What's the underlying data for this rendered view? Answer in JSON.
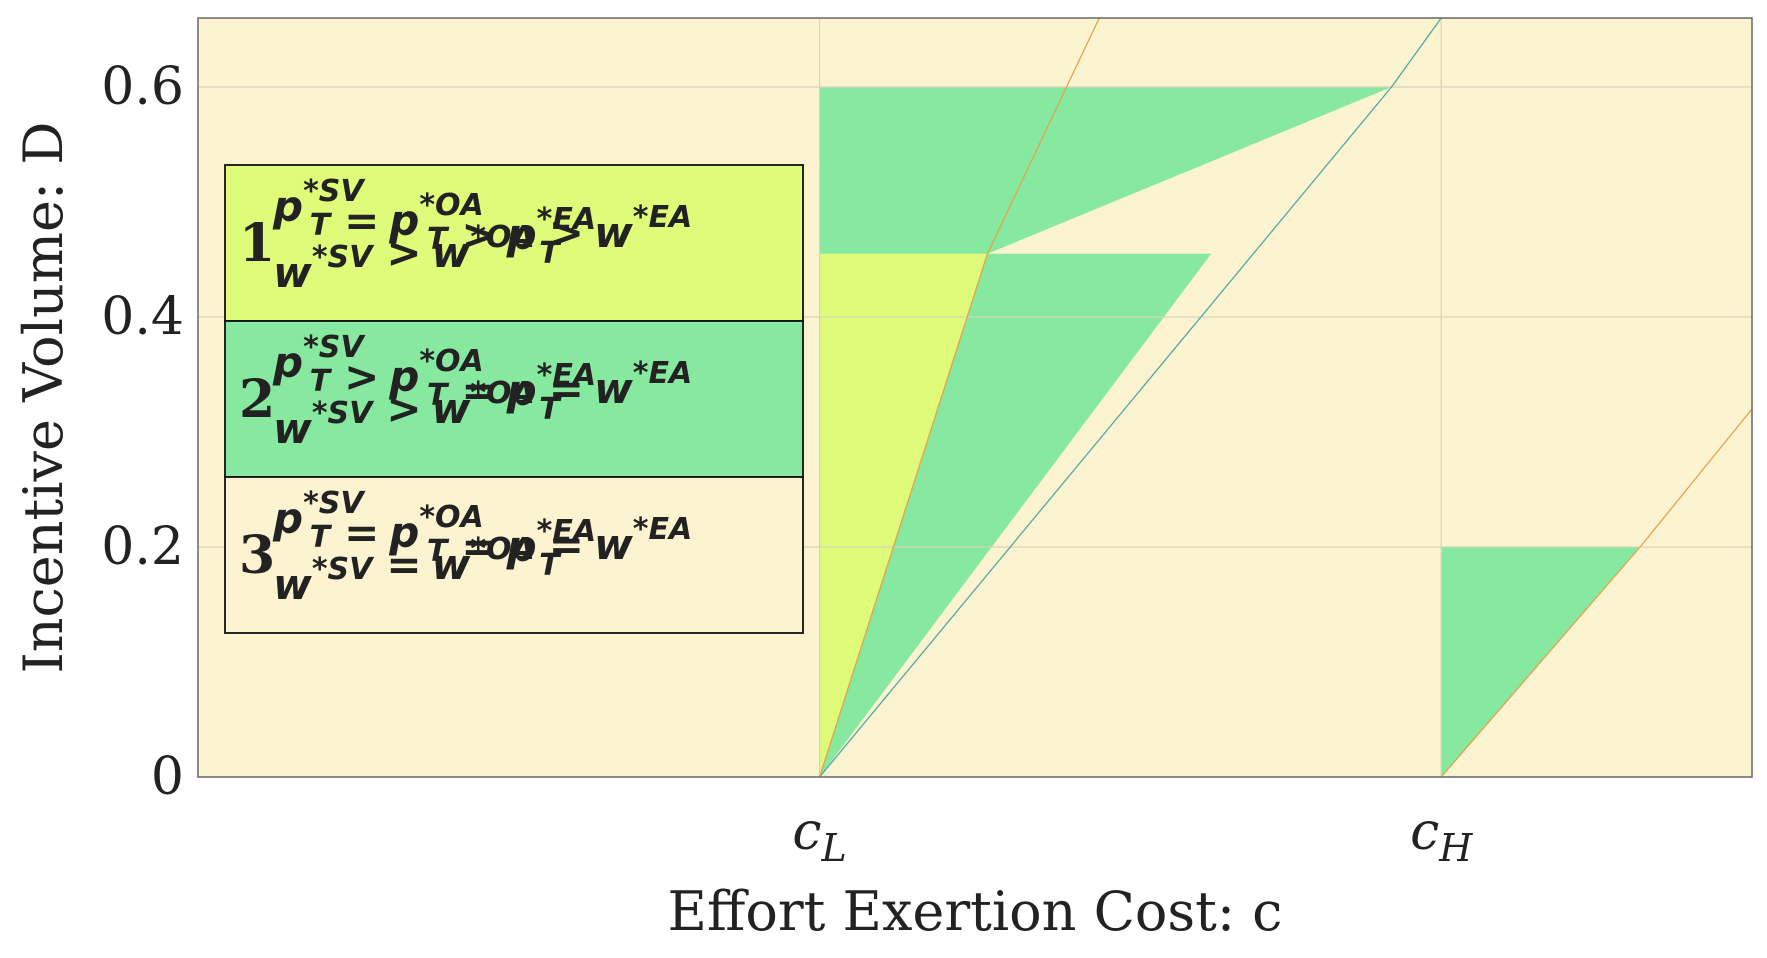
{
  "chart_data": {
    "type": "area",
    "xlabel": "Effort Exertion Cost: c",
    "ylabel": "Incentive Volume: D",
    "x_ticks": [
      {
        "value": 1,
        "label": "c_L",
        "base": "c",
        "sub": "L"
      },
      {
        "value": 2,
        "label": "c_H",
        "base": "c",
        "sub": "H"
      }
    ],
    "y_ticks": [
      0,
      0.2,
      0.4,
      0.6
    ],
    "y_tick_labels": [
      "0",
      "0.2",
      "0.4",
      "0.6"
    ],
    "xlim": [
      0,
      2.5
    ],
    "ylim": [
      0,
      0.66
    ],
    "grid": true,
    "colors": {
      "background": "#fcf3d1",
      "region1": "#dffb7a",
      "region2": "#87e8a0",
      "region3": "#fcf3d1",
      "grid": "#d9d3b8",
      "line_orange": "#e6a24a",
      "line_teal": "#4fa9a3"
    },
    "regions": [
      {
        "name": "1",
        "points": [
          [
            1,
            0
          ],
          [
            1,
            0.455
          ],
          [
            1.27,
            0.455
          ]
        ]
      },
      {
        "name": "2",
        "points": [
          [
            1,
            0.455
          ],
          [
            1,
            0.6
          ],
          [
            1.92,
            0.6
          ],
          [
            1.27,
            0.455
          ]
        ]
      },
      {
        "name": "2",
        "points": [
          [
            1.27,
            0.455
          ],
          [
            1.63,
            0.455
          ],
          [
            1,
            0
          ]
        ]
      },
      {
        "name": "2",
        "points": [
          [
            2,
            0
          ],
          [
            2,
            0.2
          ],
          [
            2.32,
            0.2
          ]
        ]
      }
    ],
    "lines": [
      {
        "name": "",
        "points": [
          [
            1,
            0
          ],
          [
            1.92,
            0.6
          ],
          [
            2.0,
            0.66
          ]
        ],
        "color": "#4fa9a3"
      },
      {
        "name": "",
        "points": [
          [
            1,
            0
          ],
          [
            1.27,
            0.455
          ],
          [
            1.45,
            0.66
          ]
        ],
        "color": "#e6a24a"
      },
      {
        "name": "",
        "points": [
          [
            2,
            0
          ],
          [
            2.32,
            0.2
          ],
          [
            2.5,
            0.32
          ]
        ],
        "color": "#e6a24a"
      }
    ],
    "legend": {
      "placement": "left",
      "entries": [
        {
          "num": "1",
          "line1": "p_T^{*SV} = p_T^{*OA} > p_T^{*EA}",
          "line2": "w^{*SV} > w^{*OA} > w^{*EA}",
          "color": "#dffb7a",
          "l1": [
            [
              "p",
              "*SV",
              "T"
            ],
            "=",
            [
              "p",
              "*OA",
              "T"
            ],
            ">",
            [
              "p",
              "*EA",
              "T"
            ]
          ],
          "l2": [
            [
              "w",
              "*SV",
              ""
            ],
            ">",
            [
              "w",
              "*OA",
              ""
            ],
            ">",
            [
              "w",
              "*EA",
              ""
            ]
          ]
        },
        {
          "num": "2",
          "line1": "p_T^{*SV} > p_T^{*OA} = p_T^{*EA}",
          "line2": "w^{*SV} > w^{*OA} = w^{*EA}",
          "color": "#87e8a0",
          "l1": [
            [
              "p",
              "*SV",
              "T"
            ],
            ">",
            [
              "p",
              "*OA",
              "T"
            ],
            "=",
            [
              "p",
              "*EA",
              "T"
            ]
          ],
          "l2": [
            [
              "w",
              "*SV",
              ""
            ],
            ">",
            [
              "w",
              "*OA",
              ""
            ],
            "=",
            [
              "w",
              "*EA",
              ""
            ]
          ]
        },
        {
          "num": "3",
          "line1": "p_T^{*SV} = p_T^{*OA} = p_T^{*EA}",
          "line2": "w^{*SV} = w^{*OA} = w^{*EA}",
          "color": "#fcf3d1",
          "l1": [
            [
              "p",
              "*SV",
              "T"
            ],
            "=",
            [
              "p",
              "*OA",
              "T"
            ],
            "=",
            [
              "p",
              "*EA",
              "T"
            ]
          ],
          "l2": [
            [
              "w",
              "*SV",
              ""
            ],
            "=",
            [
              "w",
              "*OA",
              ""
            ],
            "=",
            [
              "w",
              "*EA",
              ""
            ]
          ]
        }
      ]
    }
  }
}
